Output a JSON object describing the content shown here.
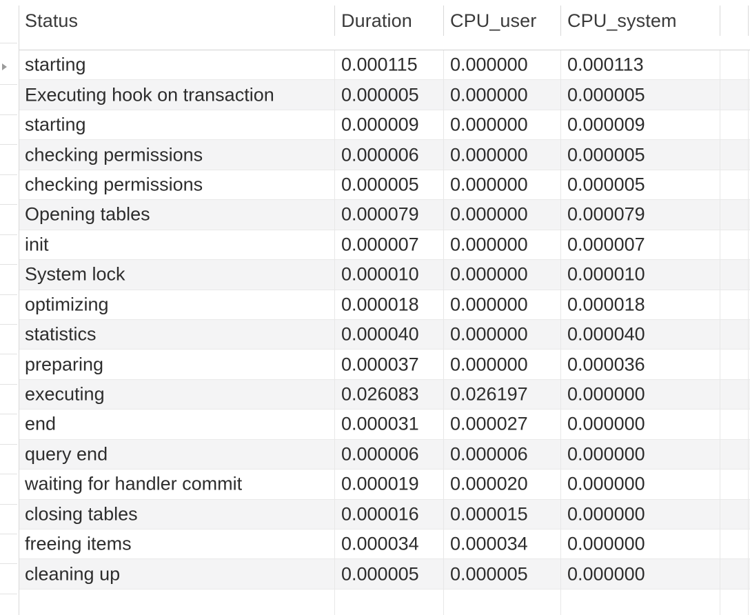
{
  "grid": {
    "columns": [
      {
        "key": "status",
        "label": "Status"
      },
      {
        "key": "duration",
        "label": "Duration"
      },
      {
        "key": "cpu_user",
        "label": "CPU_user"
      },
      {
        "key": "cpu_system",
        "label": "CPU_system"
      }
    ],
    "rows": [
      {
        "status": "starting",
        "duration": "0.000115",
        "cpu_user": "0.000000",
        "cpu_system": "0.000113"
      },
      {
        "status": "Executing hook on transaction",
        "duration": "0.000005",
        "cpu_user": "0.000000",
        "cpu_system": "0.000005"
      },
      {
        "status": "starting",
        "duration": "0.000009",
        "cpu_user": "0.000000",
        "cpu_system": "0.000009"
      },
      {
        "status": "checking permissions",
        "duration": "0.000006",
        "cpu_user": "0.000000",
        "cpu_system": "0.000005"
      },
      {
        "status": "checking permissions",
        "duration": "0.000005",
        "cpu_user": "0.000000",
        "cpu_system": "0.000005"
      },
      {
        "status": "Opening tables",
        "duration": "0.000079",
        "cpu_user": "0.000000",
        "cpu_system": "0.000079"
      },
      {
        "status": "init",
        "duration": "0.000007",
        "cpu_user": "0.000000",
        "cpu_system": "0.000007"
      },
      {
        "status": "System lock",
        "duration": "0.000010",
        "cpu_user": "0.000000",
        "cpu_system": "0.000010"
      },
      {
        "status": "optimizing",
        "duration": "0.000018",
        "cpu_user": "0.000000",
        "cpu_system": "0.000018"
      },
      {
        "status": "statistics",
        "duration": "0.000040",
        "cpu_user": "0.000000",
        "cpu_system": "0.000040"
      },
      {
        "status": "preparing",
        "duration": "0.000037",
        "cpu_user": "0.000000",
        "cpu_system": "0.000036"
      },
      {
        "status": "executing",
        "duration": "0.026083",
        "cpu_user": "0.026197",
        "cpu_system": "0.000000"
      },
      {
        "status": "end",
        "duration": "0.000031",
        "cpu_user": "0.000027",
        "cpu_system": "0.000000"
      },
      {
        "status": "query end",
        "duration": "0.000006",
        "cpu_user": "0.000006",
        "cpu_system": "0.000000"
      },
      {
        "status": "waiting for handler commit",
        "duration": "0.000019",
        "cpu_user": "0.000020",
        "cpu_system": "0.000000"
      },
      {
        "status": "closing tables",
        "duration": "0.000016",
        "cpu_user": "0.000015",
        "cpu_system": "0.000000"
      },
      {
        "status": "freeing items",
        "duration": "0.000034",
        "cpu_user": "0.000034",
        "cpu_system": "0.000000"
      },
      {
        "status": "cleaning up",
        "duration": "0.000005",
        "cpu_user": "0.000005",
        "cpu_system": "0.000000"
      }
    ],
    "selected_row_index": 0,
    "row_marker_icon": "triangle-right",
    "colors": {
      "stripe": "#f4f4f5",
      "row_divider": "#e9e9e9",
      "header_divider": "#d8d8d8",
      "header_border": "#d2d2d2",
      "text": "#2d2d2d",
      "marker": "#9b9b9b"
    }
  }
}
